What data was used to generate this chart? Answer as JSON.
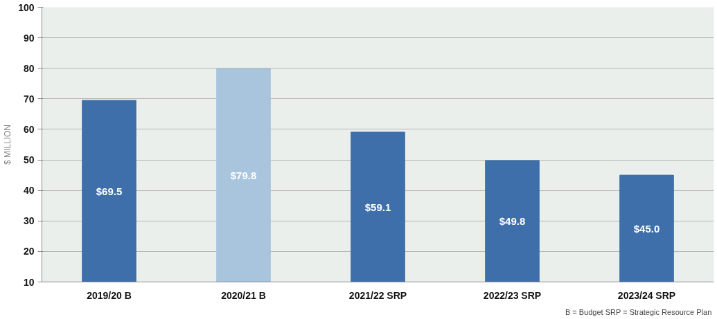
{
  "chart_data": {
    "type": "bar",
    "ylabel": "$ MILLION",
    "categories": [
      "2019/20 B",
      "2020/21 B",
      "2021/22 SRP",
      "2022/23 SRP",
      "2023/24 SRP"
    ],
    "values": [
      69.5,
      79.8,
      59.1,
      49.8,
      45.0
    ],
    "colors": [
      "#3f6faa",
      "#a9c4dd",
      "#3f6faa",
      "#3f6faa",
      "#3f6faa"
    ],
    "value_labels": [
      "$69.5",
      "$79.8",
      "$59.1",
      "$49.8",
      "$45.0"
    ],
    "ylim": [
      10,
      100
    ],
    "yticks": [
      10,
      20,
      30,
      40,
      50,
      60,
      70,
      80,
      90,
      100
    ],
    "grid": "y",
    "annotations": [
      "B = Budget  SRP = Strategic Resource Plan"
    ]
  }
}
